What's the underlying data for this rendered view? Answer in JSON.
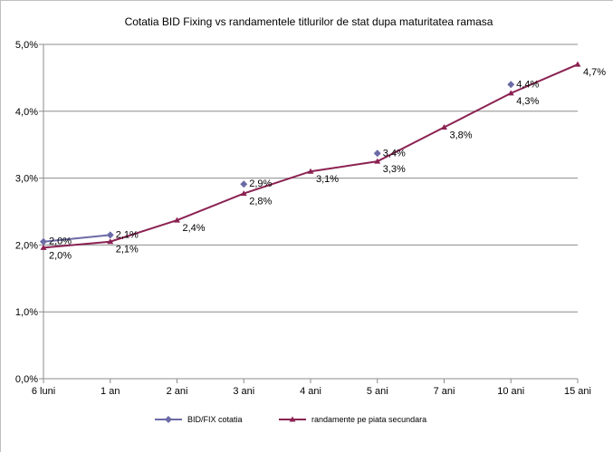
{
  "chart_data": {
    "type": "line",
    "title": "Cotatia BID Fixing  vs randamentele titlurilor de stat dupa maturitatea ramasa",
    "categories": [
      "6 luni",
      "1 an",
      "2 ani",
      "3 ani",
      "4 ani",
      "5 ani",
      "7 ani",
      "10 ani",
      "15 ani"
    ],
    "ylim": [
      0,
      5
    ],
    "ytick_labels": [
      "0,0%",
      "1,0%",
      "2,0%",
      "3,0%",
      "4,0%",
      "5,0%"
    ],
    "grid": true,
    "legend": "bottom",
    "series": [
      {
        "name": "BID/FIX cotatia",
        "color": "#6b6ba6",
        "marker": "diamond",
        "values": [
          2.05,
          2.15,
          null,
          2.91,
          null,
          3.37,
          null,
          4.4,
          null
        ],
        "labels": [
          "2,0%",
          "2,1%",
          "",
          "2,9%",
          "",
          "3,4%",
          "",
          "4,4%",
          ""
        ]
      },
      {
        "name": "randamente pe piata secundara",
        "color": "#8b2252",
        "marker": "triangle",
        "values": [
          1.96,
          2.05,
          2.37,
          2.77,
          3.1,
          3.25,
          3.76,
          4.27,
          4.7
        ],
        "labels": [
          "2,0%",
          "2,1%",
          "2,4%",
          "2,8%",
          "3,1%",
          "3,3%",
          "3,8%",
          "4,3%",
          "4,7%"
        ]
      }
    ]
  }
}
